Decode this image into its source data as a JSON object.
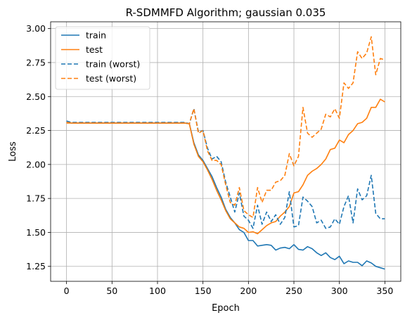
{
  "chart_data": {
    "type": "line",
    "title": "R-SDMMFD Algorithm; gaussian 0.035",
    "xlabel": "Epoch",
    "ylabel": "Loss",
    "xlim": [
      -17.5,
      367.5
    ],
    "ylim": [
      1.14,
      3.05
    ],
    "xticks": [
      0,
      50,
      100,
      150,
      200,
      250,
      300,
      350
    ],
    "yticks": [
      1.25,
      1.5,
      1.75,
      2.0,
      2.25,
      2.5,
      2.75,
      3.0
    ],
    "xtick_labels": [
      "0",
      "50",
      "100",
      "150",
      "200",
      "250",
      "300",
      "350"
    ],
    "ytick_labels": [
      "1.25",
      "1.50",
      "1.75",
      "2.00",
      "2.25",
      "2.50",
      "2.75",
      "3.00"
    ],
    "grid": true,
    "legend_position": "top-left",
    "x": [
      0,
      5,
      10,
      15,
      20,
      25,
      30,
      35,
      40,
      45,
      50,
      55,
      60,
      65,
      70,
      75,
      80,
      85,
      90,
      95,
      100,
      105,
      110,
      115,
      120,
      125,
      130,
      135,
      140,
      145,
      150,
      155,
      160,
      165,
      170,
      175,
      180,
      185,
      190,
      195,
      200,
      205,
      210,
      215,
      220,
      225,
      230,
      235,
      240,
      245,
      250,
      255,
      260,
      265,
      270,
      275,
      280,
      285,
      290,
      295,
      300,
      305,
      310,
      315,
      320,
      325,
      330,
      335,
      340,
      345,
      350
    ],
    "series": [
      {
        "name": "train",
        "color": "#1f77b4",
        "dash": "solid",
        "values": [
          2.31,
          2.305,
          2.305,
          2.305,
          2.305,
          2.305,
          2.305,
          2.305,
          2.305,
          2.305,
          2.305,
          2.305,
          2.305,
          2.305,
          2.305,
          2.305,
          2.305,
          2.305,
          2.305,
          2.305,
          2.305,
          2.305,
          2.305,
          2.305,
          2.305,
          2.305,
          2.305,
          2.3,
          2.16,
          2.07,
          2.03,
          1.97,
          1.91,
          1.83,
          1.76,
          1.67,
          1.61,
          1.57,
          1.52,
          1.5,
          1.44,
          1.44,
          1.4,
          1.405,
          1.41,
          1.405,
          1.37,
          1.385,
          1.39,
          1.38,
          1.41,
          1.375,
          1.37,
          1.395,
          1.38,
          1.35,
          1.33,
          1.35,
          1.315,
          1.3,
          1.325,
          1.27,
          1.29,
          1.28,
          1.28,
          1.255,
          1.29,
          1.275,
          1.25,
          1.24,
          1.23
        ]
      },
      {
        "name": "test",
        "color": "#ff7f0e",
        "dash": "solid",
        "values": [
          2.305,
          2.305,
          2.305,
          2.305,
          2.305,
          2.305,
          2.305,
          2.305,
          2.305,
          2.305,
          2.305,
          2.305,
          2.305,
          2.305,
          2.305,
          2.305,
          2.305,
          2.305,
          2.305,
          2.305,
          2.305,
          2.305,
          2.305,
          2.305,
          2.305,
          2.305,
          2.305,
          2.3,
          2.15,
          2.06,
          2.02,
          1.96,
          1.89,
          1.81,
          1.74,
          1.66,
          1.6,
          1.57,
          1.54,
          1.53,
          1.5,
          1.505,
          1.49,
          1.52,
          1.55,
          1.57,
          1.58,
          1.62,
          1.65,
          1.69,
          1.79,
          1.8,
          1.85,
          1.92,
          1.95,
          1.97,
          2.0,
          2.04,
          2.11,
          2.12,
          2.18,
          2.16,
          2.22,
          2.25,
          2.3,
          2.31,
          2.34,
          2.42,
          2.42,
          2.48,
          2.46
        ]
      },
      {
        "name": "train (worst)",
        "color": "#1f77b4",
        "dash": "dashed",
        "values": [
          2.32,
          2.31,
          2.31,
          2.31,
          2.31,
          2.31,
          2.31,
          2.31,
          2.31,
          2.31,
          2.31,
          2.31,
          2.31,
          2.31,
          2.31,
          2.31,
          2.31,
          2.31,
          2.31,
          2.31,
          2.31,
          2.31,
          2.31,
          2.31,
          2.31,
          2.31,
          2.31,
          2.3,
          2.41,
          2.24,
          2.25,
          2.12,
          2.04,
          2.06,
          2.02,
          1.87,
          1.76,
          1.65,
          1.79,
          1.62,
          1.59,
          1.53,
          1.7,
          1.56,
          1.65,
          1.58,
          1.63,
          1.56,
          1.61,
          1.8,
          1.54,
          1.55,
          1.76,
          1.73,
          1.69,
          1.57,
          1.59,
          1.53,
          1.54,
          1.6,
          1.56,
          1.69,
          1.77,
          1.57,
          1.82,
          1.74,
          1.77,
          1.92,
          1.64,
          1.6,
          1.6
        ]
      },
      {
        "name": "test (worst)",
        "color": "#ff7f0e",
        "dash": "dashed",
        "values": [
          2.31,
          2.305,
          2.305,
          2.305,
          2.305,
          2.305,
          2.305,
          2.305,
          2.305,
          2.305,
          2.305,
          2.305,
          2.305,
          2.305,
          2.305,
          2.305,
          2.305,
          2.305,
          2.305,
          2.305,
          2.305,
          2.305,
          2.305,
          2.305,
          2.305,
          2.305,
          2.305,
          2.3,
          2.41,
          2.23,
          2.25,
          2.1,
          2.03,
          2.03,
          2.0,
          1.85,
          1.72,
          1.7,
          1.83,
          1.66,
          1.63,
          1.61,
          1.83,
          1.72,
          1.81,
          1.81,
          1.87,
          1.88,
          1.92,
          2.08,
          1.99,
          2.06,
          2.42,
          2.23,
          2.2,
          2.23,
          2.26,
          2.37,
          2.35,
          2.41,
          2.34,
          2.6,
          2.56,
          2.6,
          2.83,
          2.78,
          2.82,
          2.94,
          2.66,
          2.78,
          2.77
        ]
      }
    ]
  }
}
